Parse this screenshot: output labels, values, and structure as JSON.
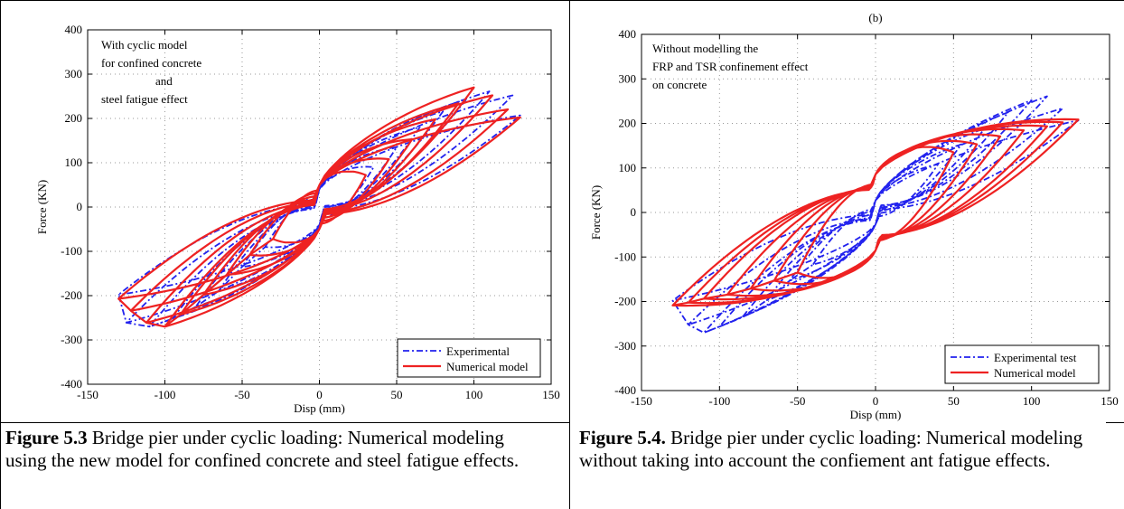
{
  "chart_data": [
    {
      "type": "line",
      "panel_label": "",
      "xlabel": "Disp (mm)",
      "ylabel": "Force (KN)",
      "xlim": [
        -150,
        150
      ],
      "ylim": [
        -400,
        400
      ],
      "xticks": [
        "-150",
        "-100",
        "-50",
        "0",
        "50",
        "100",
        "150"
      ],
      "yticks": [
        "400",
        "300",
        "200",
        "100",
        "0",
        "-100",
        "-200",
        "-300",
        "-400"
      ],
      "grid": true,
      "legend_position": "bottom-right",
      "annotation": [
        "With cyclic model",
        "for confined concrete",
        "and",
        "steel fatigue effect"
      ],
      "series": [
        {
          "name": "Experimental",
          "style": "dash-dot",
          "color": "#2222ee",
          "hysteresis": {
            "amplitudes": [
              35,
              50,
              65,
              80,
              95,
              110,
              125,
              130
            ],
            "peak_force_pos": [
              100,
              150,
              200,
              240,
              270,
              290,
              280,
              230
            ],
            "peak_force_neg": [
              -100,
              -150,
              -210,
              -250,
              -280,
              -300,
              -290,
              -220
            ],
            "pinch_force": 45
          }
        },
        {
          "name": "Numerical model",
          "style": "solid",
          "color": "#ee2222",
          "hysteresis": {
            "amplitudes": [
              30,
              45,
              60,
              75,
              90,
              100,
              112,
              122,
              130
            ],
            "peak_force_pos": [
              80,
              120,
              170,
              220,
              260,
              300,
              280,
              245,
              225
            ],
            "peak_force_neg": [
              -80,
              -120,
              -170,
              -220,
              -270,
              -300,
              -290,
              -260,
              -230
            ],
            "pinch_force": 55
          }
        }
      ]
    },
    {
      "type": "line",
      "panel_label": "(b)",
      "xlabel": "Disp (mm)",
      "ylabel": "Force (KN)",
      "xlim": [
        -150,
        150
      ],
      "ylim": [
        -400,
        400
      ],
      "xticks": [
        "-150",
        "-100",
        "-50",
        "0",
        "50",
        "100",
        "150"
      ],
      "yticks": [
        "400",
        "300",
        "200",
        "100",
        "0",
        "-100",
        "-200",
        "-300",
        "-400"
      ],
      "grid": true,
      "legend_position": "bottom-right",
      "annotation": [
        "Without modelling the",
        "FRP and TSR confinement effect",
        "on concrete"
      ],
      "series": [
        {
          "name": "Experimental test",
          "style": "dash-dot",
          "color": "#2222ee",
          "hysteresis": {
            "amplitudes": [
              40,
              55,
              70,
              85,
              100,
              110,
              120,
              130
            ],
            "peak_force_pos": [
              120,
              170,
              210,
              250,
              280,
              290,
              260,
              230
            ],
            "peak_force_neg": [
              -130,
              -170,
              -220,
              -260,
              -285,
              -300,
              -280,
              -220
            ],
            "pinch_force": 30
          }
        },
        {
          "name": "Numerical model",
          "style": "solid",
          "color": "#ee2222",
          "hysteresis": {
            "amplitudes": [
              50,
              65,
              80,
              95,
              110,
              120,
              130
            ],
            "peak_force_pos": [
              150,
              170,
              190,
              205,
              215,
              225,
              232
            ],
            "peak_force_neg": [
              -150,
              -170,
              -190,
              -205,
              -215,
              -225,
              -232
            ],
            "pinch_force": 95
          }
        }
      ]
    }
  ],
  "captions": [
    {
      "label": "Figure 5.3",
      "text": " Bridge pier under cyclic loading: Numerical modeling using the new model for confined concrete and steel fatigue effects."
    },
    {
      "label": "Figure 5.4.",
      "text": " Bridge pier under cyclic loading: Numerical modeling without taking into account the confiement ant fatigue effects."
    }
  ]
}
